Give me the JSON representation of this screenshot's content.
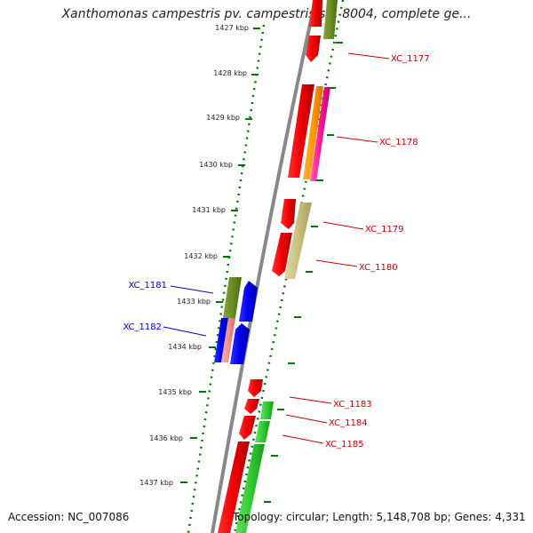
{
  "title": "Xanthomonas campestris pv. campestris str. 8004, complete ge...",
  "footer": {
    "accession": "Accession: NC_007086",
    "summary": "Topology: circular; Length: 5,148,708 bp; Genes: 4,331"
  },
  "colors": {
    "forward_label": "#cc0000",
    "reverse_label": "#0000cc",
    "tick": "#007700",
    "backbone": "#888888"
  },
  "ticks": [
    "1427 kbp",
    "1428 kbp",
    "1429 kbp",
    "1430 kbp",
    "1431 kbp",
    "1432 kbp",
    "1433 kbp",
    "1434 kbp",
    "1435 kbp",
    "1436 kbp",
    "1437 kbp"
  ],
  "gene_labels": {
    "xc1177": "XC_1177",
    "xc1178": "XC_1178",
    "xc1179": "XC_1179",
    "xc1180": "XC_1180",
    "xc1181": "XC_1181",
    "xc1182": "XC_1182",
    "xc1183": "XC_1183",
    "xc1184": "XC_1184",
    "xc1185": "XC_1185"
  }
}
